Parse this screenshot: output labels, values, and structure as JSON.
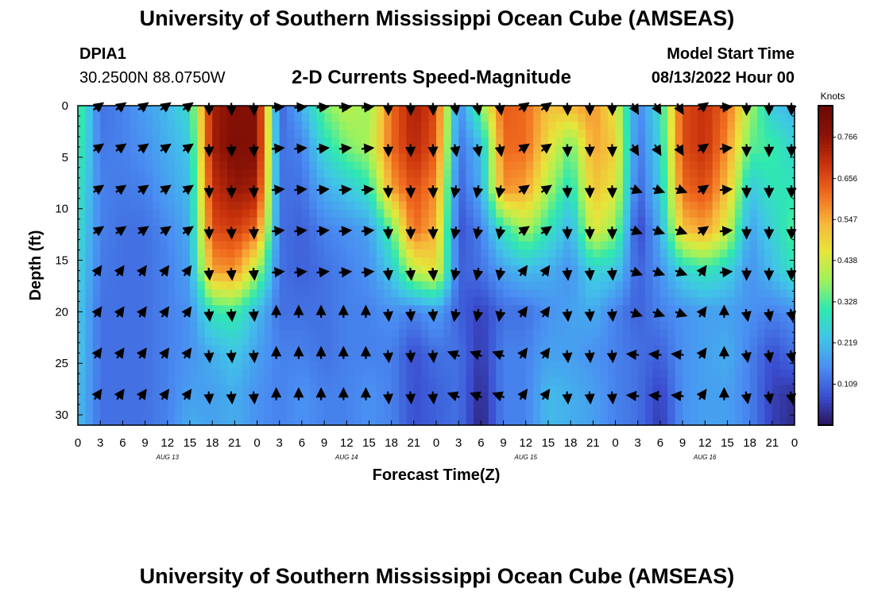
{
  "page": {
    "title": "University of Southern Mississippi Ocean Cube (AMSEAS)",
    "station_id": "DPIA1",
    "station_coords": "30.2500N  88.0750W",
    "subtitle": "2-D Currents Speed-Magnitude",
    "model_start_label": "Model Start Time",
    "model_start_value": "08/13/2022 Hour 00",
    "footer_title": "University of Southern Mississippi Ocean Cube (AMSEAS)"
  },
  "colors": {
    "scale": [
      "#2a1259",
      "#3a4ed0",
      "#4a8ef2",
      "#41c4e8",
      "#2fe8b0",
      "#9ff25c",
      "#e6e63a",
      "#f7b43a",
      "#f06a1e",
      "#c8320c",
      "#8a1206",
      "#6a0a04"
    ]
  },
  "chart_data": {
    "type": "heatmap",
    "title": "2-D Currents Speed-Magnitude",
    "xlabel": "Forecast Time(Z)",
    "ylabel": "Depth (ft)",
    "x_tick_labels": [
      "0",
      "3",
      "6",
      "9",
      "12",
      "15",
      "18",
      "21",
      "0",
      "3",
      "6",
      "9",
      "12",
      "15",
      "18",
      "21",
      "0",
      "3",
      "6",
      "9",
      "12",
      "15",
      "18",
      "21",
      "0",
      "3",
      "6",
      "9",
      "12",
      "15",
      "18",
      "21",
      "0"
    ],
    "x_range_hours": [
      0,
      96
    ],
    "date_labels": [
      {
        "hour": 12,
        "label": "AUG 13"
      },
      {
        "hour": 36,
        "label": "AUG 14"
      },
      {
        "hour": 60,
        "label": "AUG 15"
      },
      {
        "hour": 84,
        "label": "AUG 16"
      }
    ],
    "y_ticks": [
      "0",
      "5",
      "10",
      "15",
      "20",
      "25",
      "30"
    ],
    "y_range_ft": [
      0,
      31
    ],
    "colorbar": {
      "unit_label": "Knots",
      "range": [
        0,
        0.85
      ],
      "tick_labels": [
        "0.766",
        "0.656",
        "0.547",
        "0.438",
        "0.328",
        "0.219",
        "0.109"
      ],
      "tick_values": [
        0.766,
        0.656,
        0.547,
        0.438,
        0.328,
        0.219,
        0.109
      ]
    },
    "arrow_depths_ft": [
      0,
      4,
      8,
      12,
      16,
      20,
      24,
      28
    ],
    "arrow_hours": [
      3,
      6,
      9,
      12,
      15,
      18,
      21,
      24,
      27,
      30,
      33,
      36,
      39,
      42,
      45,
      48,
      51,
      54,
      57,
      60,
      63,
      66,
      69,
      72,
      75,
      78,
      81,
      84,
      87,
      90,
      93,
      96
    ],
    "speed_knots": {
      "hours": [
        0,
        3,
        6,
        9,
        12,
        15,
        18,
        21,
        24,
        27,
        30,
        33,
        36,
        39,
        42,
        45,
        48,
        51,
        54,
        57,
        60,
        63,
        66,
        69,
        72,
        75,
        78,
        81,
        84,
        87,
        90,
        93,
        96
      ],
      "depths_ft": [
        0,
        4,
        8,
        12,
        16,
        20,
        24,
        28,
        31
      ],
      "values": [
        [
          0.35,
          0.12,
          0.14,
          0.18,
          0.22,
          0.28,
          0.74,
          0.79,
          0.79,
          0.1,
          0.2,
          0.36,
          0.42,
          0.38,
          0.62,
          0.74,
          0.66,
          0.14,
          0.36,
          0.64,
          0.62,
          0.52,
          0.54,
          0.58,
          0.46,
          0.14,
          0.28,
          0.66,
          0.7,
          0.62,
          0.4,
          0.24,
          0.2
        ],
        [
          0.33,
          0.13,
          0.14,
          0.16,
          0.2,
          0.24,
          0.74,
          0.8,
          0.79,
          0.12,
          0.14,
          0.28,
          0.36,
          0.4,
          0.62,
          0.72,
          0.64,
          0.12,
          0.22,
          0.62,
          0.62,
          0.48,
          0.34,
          0.56,
          0.5,
          0.12,
          0.26,
          0.66,
          0.7,
          0.58,
          0.34,
          0.32,
          0.26
        ],
        [
          0.3,
          0.14,
          0.13,
          0.14,
          0.18,
          0.22,
          0.7,
          0.76,
          0.74,
          0.12,
          0.12,
          0.2,
          0.24,
          0.3,
          0.56,
          0.66,
          0.58,
          0.1,
          0.2,
          0.58,
          0.56,
          0.4,
          0.28,
          0.52,
          0.46,
          0.1,
          0.24,
          0.62,
          0.66,
          0.52,
          0.24,
          0.3,
          0.3
        ],
        [
          0.28,
          0.14,
          0.12,
          0.12,
          0.15,
          0.2,
          0.66,
          0.68,
          0.62,
          0.12,
          0.1,
          0.14,
          0.16,
          0.18,
          0.34,
          0.62,
          0.54,
          0.08,
          0.14,
          0.3,
          0.4,
          0.3,
          0.2,
          0.46,
          0.38,
          0.06,
          0.2,
          0.52,
          0.56,
          0.44,
          0.18,
          0.26,
          0.34
        ],
        [
          0.26,
          0.13,
          0.12,
          0.12,
          0.14,
          0.18,
          0.56,
          0.58,
          0.4,
          0.12,
          0.1,
          0.12,
          0.14,
          0.16,
          0.24,
          0.42,
          0.48,
          0.1,
          0.12,
          0.18,
          0.22,
          0.2,
          0.16,
          0.26,
          0.24,
          0.1,
          0.16,
          0.26,
          0.3,
          0.26,
          0.16,
          0.22,
          0.3
        ],
        [
          0.24,
          0.12,
          0.12,
          0.12,
          0.14,
          0.16,
          0.3,
          0.32,
          0.22,
          0.12,
          0.12,
          0.12,
          0.14,
          0.14,
          0.16,
          0.14,
          0.18,
          0.1,
          0.06,
          0.12,
          0.12,
          0.16,
          0.18,
          0.2,
          0.14,
          0.1,
          0.14,
          0.16,
          0.18,
          0.18,
          0.16,
          0.14,
          0.16
        ],
        [
          0.24,
          0.12,
          0.12,
          0.12,
          0.14,
          0.16,
          0.2,
          0.24,
          0.18,
          0.14,
          0.14,
          0.12,
          0.14,
          0.14,
          0.14,
          0.08,
          0.12,
          0.12,
          0.05,
          0.14,
          0.14,
          0.18,
          0.18,
          0.16,
          0.14,
          0.12,
          0.1,
          0.16,
          0.18,
          0.2,
          0.14,
          0.08,
          0.12
        ],
        [
          0.22,
          0.12,
          0.12,
          0.12,
          0.14,
          0.18,
          0.18,
          0.2,
          0.16,
          0.14,
          0.16,
          0.14,
          0.14,
          0.16,
          0.14,
          0.08,
          0.1,
          0.12,
          0.03,
          0.14,
          0.14,
          0.22,
          0.2,
          0.18,
          0.14,
          0.12,
          0.06,
          0.16,
          0.18,
          0.18,
          0.14,
          0.06,
          0.04
        ],
        [
          0.22,
          0.12,
          0.12,
          0.12,
          0.14,
          0.2,
          0.18,
          0.2,
          0.16,
          0.14,
          0.16,
          0.14,
          0.14,
          0.16,
          0.14,
          0.08,
          0.1,
          0.12,
          0.02,
          0.14,
          0.14,
          0.22,
          0.2,
          0.18,
          0.14,
          0.12,
          0.05,
          0.16,
          0.18,
          0.18,
          0.14,
          0.06,
          0.03
        ]
      ]
    }
  }
}
